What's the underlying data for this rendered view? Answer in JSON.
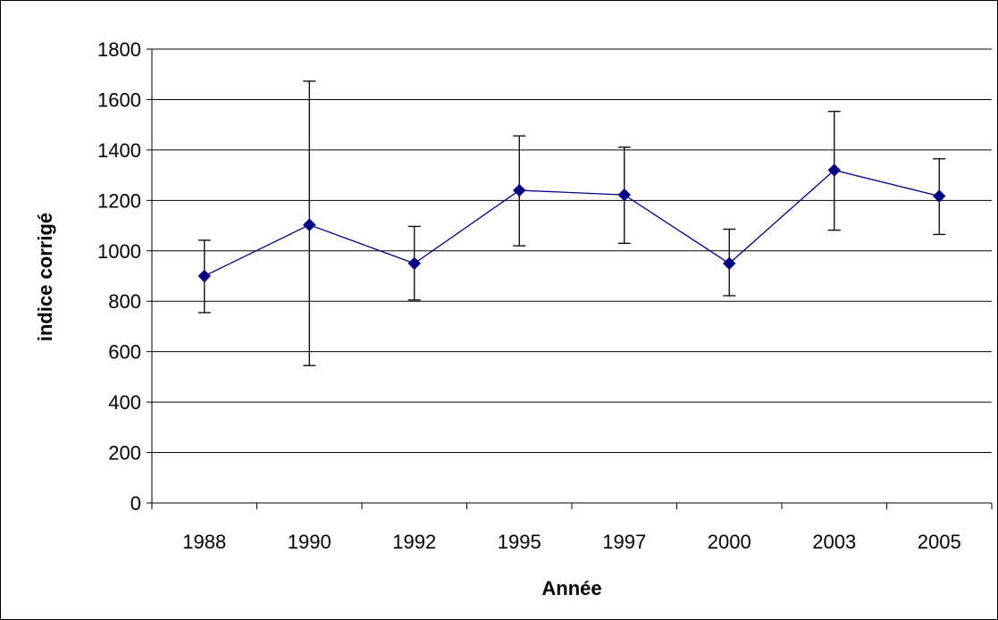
{
  "chart_data": {
    "type": "line",
    "title": "",
    "xlabel": "Année",
    "ylabel": "indice corrigé",
    "categories": [
      "1988",
      "1990",
      "1992",
      "1995",
      "1997",
      "2000",
      "2003",
      "2005"
    ],
    "series": [
      {
        "values": [
          900,
          1103,
          950,
          1240,
          1222,
          950,
          1320,
          1217
        ],
        "error_low": [
          755,
          545,
          805,
          1020,
          1030,
          822,
          1082,
          1065
        ],
        "error_high": [
          1042,
          1673,
          1097,
          1456,
          1411,
          1086,
          1553,
          1365
        ],
        "color": "#000080",
        "marker": "diamond"
      }
    ],
    "ylim": [
      0,
      1800
    ],
    "yticks": [
      0,
      200,
      400,
      600,
      800,
      1000,
      1200,
      1400,
      1600,
      1800
    ],
    "grid": true,
    "legend": "none"
  },
  "colors": {
    "background": "#ffffff",
    "frame": "#000000",
    "gridline": "#000000",
    "series": "#000080",
    "error_bar": "#000000"
  }
}
